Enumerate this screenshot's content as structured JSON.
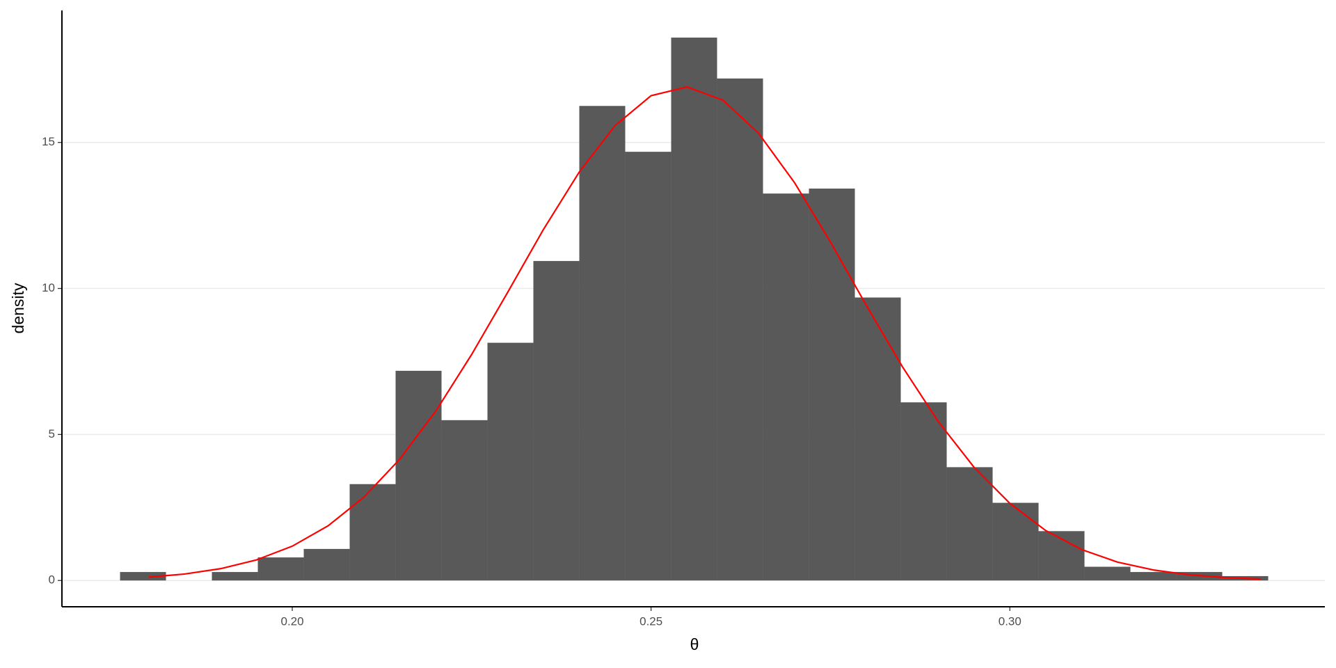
{
  "chart_data": {
    "type": "histogram",
    "x_label": "θ",
    "y_label": "density",
    "bins": [
      0.176,
      0.1824,
      0.1888,
      0.1952,
      0.2016,
      0.208,
      0.2144,
      0.2208,
      0.2272,
      0.2336,
      0.24,
      0.2464,
      0.2528,
      0.2592,
      0.2656,
      0.272,
      0.2784,
      0.2848,
      0.2912,
      0.2976,
      0.304,
      0.3104,
      0.3168,
      0.3232,
      0.3296,
      0.336
    ],
    "values": [
      0.29,
      0,
      0.29,
      0.79,
      1.08,
      3.3,
      7.18,
      5.49,
      8.14,
      10.94,
      16.25,
      14.68,
      18.59,
      17.19,
      13.25,
      13.42,
      9.69,
      6.1,
      3.88,
      2.66,
      1.69,
      0.47,
      0.29,
      0.29,
      0.15
    ],
    "color": "#595959",
    "line": {
      "color": "#ff0000",
      "x": [
        0.18,
        0.185,
        0.19,
        0.195,
        0.2,
        0.205,
        0.21,
        0.215,
        0.22,
        0.225,
        0.23,
        0.235,
        0.24,
        0.245,
        0.25,
        0.255,
        0.26,
        0.265,
        0.27,
        0.275,
        0.28,
        0.285,
        0.29,
        0.295,
        0.3,
        0.305,
        0.31,
        0.315,
        0.32,
        0.325,
        0.33,
        0.335
      ],
      "y": [
        0.116,
        0.221,
        0.404,
        0.704,
        1.175,
        1.874,
        2.856,
        4.16,
        5.8,
        7.74,
        9.86,
        12.02,
        13.99,
        15.58,
        16.6,
        16.9,
        16.45,
        15.31,
        13.62,
        11.59,
        9.42,
        7.33,
        5.45,
        3.88,
        2.64,
        1.71,
        1.06,
        0.63,
        0.36,
        0.195,
        0.101,
        0.05
      ]
    },
    "xlim": [
      0.1679,
      0.3439
    ],
    "ylim": [
      -0.9,
      19.52
    ],
    "xticks": [
      {
        "value": 0.2,
        "label": "0.20"
      },
      {
        "value": 0.25,
        "label": "0.25"
      },
      {
        "value": 0.3,
        "label": "0.30"
      }
    ],
    "yticks": [
      0,
      5,
      10,
      15
    ],
    "grid": true
  }
}
